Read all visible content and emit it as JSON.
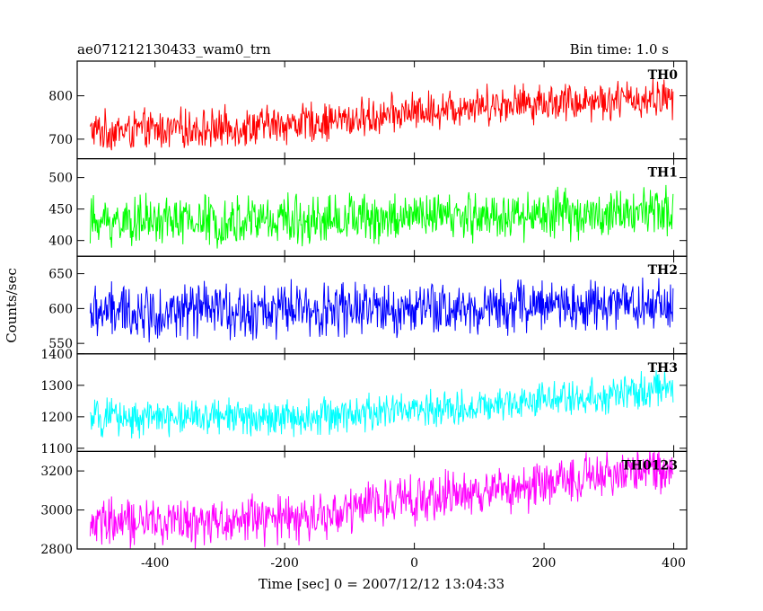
{
  "chart_data": {
    "type": "line",
    "title": "ae071212130433_wam0_trn",
    "subtitle": "Bin time: 1.0 s",
    "xlabel": "Time [sec] 0 = 2007/12/12 13:04:33",
    "ylabel": "Counts/sec",
    "xlim": [
      -520,
      420
    ],
    "xticks": [
      -400,
      -200,
      0,
      200,
      400
    ],
    "x_range": [
      -500,
      399
    ],
    "x_step": 1,
    "grid": false,
    "panels": [
      {
        "name": "TH0",
        "color": "#ff0000",
        "ylim": [
          655,
          880
        ],
        "yticks": [
          700,
          800
        ],
        "trend": [
          [
            -500,
            718
          ],
          [
            -300,
            725
          ],
          [
            -100,
            745
          ],
          [
            100,
            780
          ],
          [
            399,
            795
          ]
        ],
        "noise_amplitude": 55
      },
      {
        "name": "TH1",
        "color": "#00ff00",
        "ylim": [
          375,
          530
        ],
        "yticks": [
          400,
          450,
          500
        ],
        "trend": [
          [
            -500,
            430
          ],
          [
            -100,
            435
          ],
          [
            399,
            445
          ]
        ],
        "noise_amplitude": 48
      },
      {
        "name": "TH2",
        "color": "#0000ff",
        "ylim": [
          535,
          675
        ],
        "yticks": [
          550,
          600,
          650
        ],
        "trend": [
          [
            -500,
            595
          ],
          [
            0,
            598
          ],
          [
            399,
            608
          ]
        ],
        "noise_amplitude": 48
      },
      {
        "name": "TH3",
        "color": "#00ffff",
        "ylim": [
          1090,
          1400
        ],
        "yticks": [
          1100,
          1200,
          1300,
          1400
        ],
        "trend": [
          [
            -500,
            1195
          ],
          [
            -200,
            1200
          ],
          [
            100,
            1230
          ],
          [
            399,
            1290
          ]
        ],
        "noise_amplitude": 70
      },
      {
        "name": "TH0123",
        "color": "#ff00ff",
        "ylim": [
          2800,
          3300
        ],
        "yticks": [
          2800,
          3000,
          3200
        ],
        "trend": [
          [
            -500,
            2930
          ],
          [
            -150,
            2960
          ],
          [
            -50,
            3040
          ],
          [
            150,
            3110
          ],
          [
            399,
            3220
          ]
        ],
        "noise_amplitude": 150
      }
    ]
  }
}
